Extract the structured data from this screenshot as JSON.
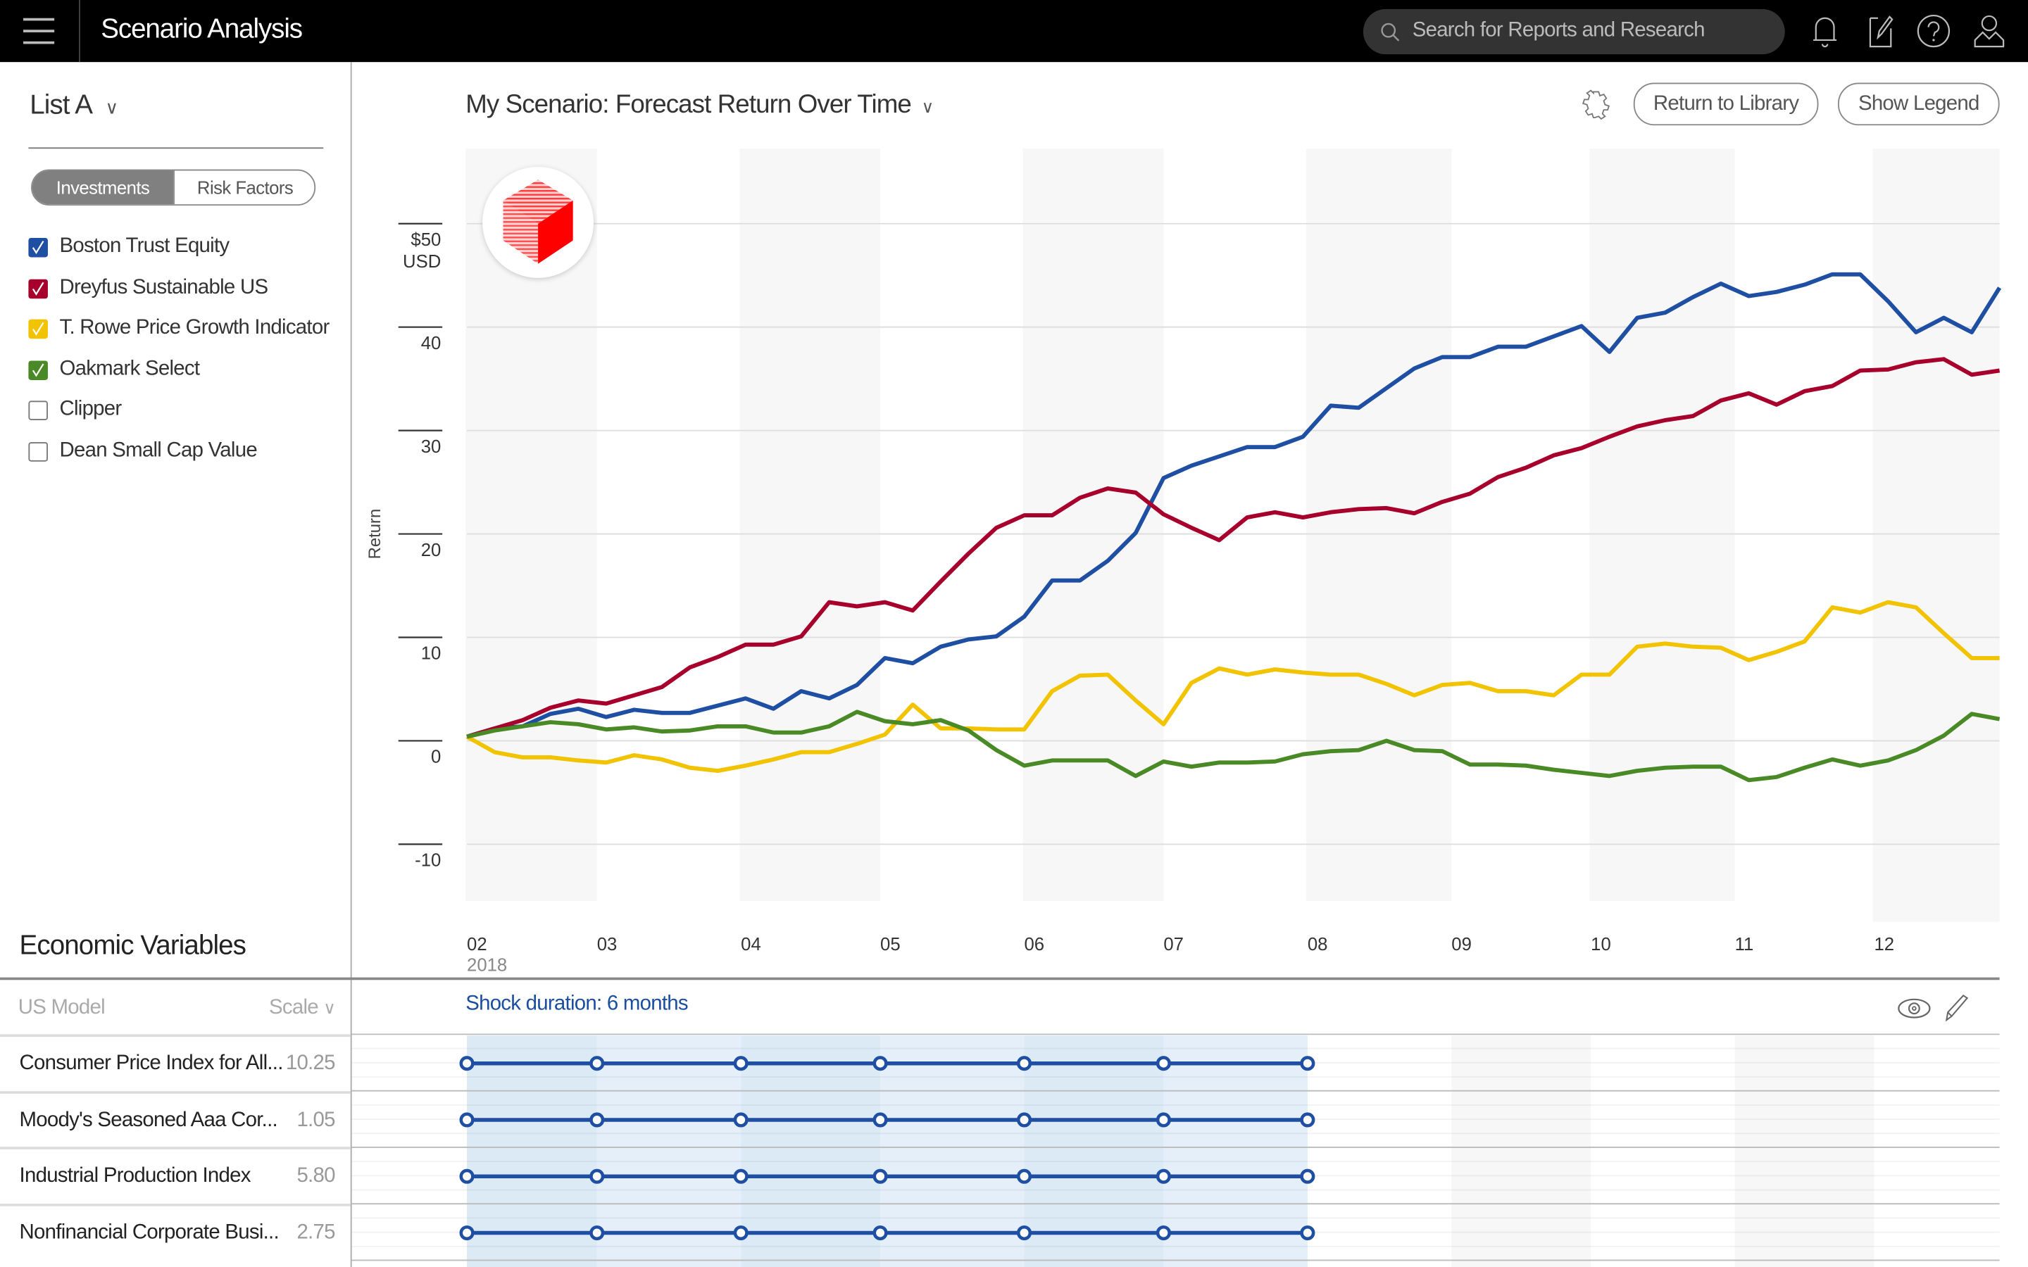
{
  "header": {
    "title": "Scenario Analysis",
    "search_placeholder": "Search for Reports and Research",
    "icons": [
      "menu-icon",
      "search-icon",
      "bell-icon",
      "edit-icon",
      "help-icon",
      "user-icon"
    ]
  },
  "sidebar": {
    "list_title": "List A",
    "segments": [
      {
        "label": "Investments",
        "active": true
      },
      {
        "label": "Risk Factors",
        "active": false
      }
    ],
    "items": [
      {
        "label": "Boston Trust Equity",
        "checked": true,
        "color": "#1f4fa3"
      },
      {
        "label": "Dreyfus Sustainable US",
        "checked": true,
        "color": "#a8002c"
      },
      {
        "label": "T. Rowe Price Growth Indicator",
        "checked": true,
        "color": "#f2c300"
      },
      {
        "label": "Oakmark Select",
        "checked": true,
        "color": "#4a8a26"
      },
      {
        "label": "Clipper",
        "checked": false,
        "color": "#777777"
      },
      {
        "label": "Dean Small Cap Value",
        "checked": false,
        "color": "#777777"
      }
    ]
  },
  "main": {
    "chart_title": "My Scenario: Forecast Return Over Time",
    "return_button": "Return to Library",
    "legend_button": "Show Legend"
  },
  "economic": {
    "title": "Economic Variables",
    "model": "US Model",
    "scale_label": "Scale",
    "shock_label": "Shock duration: 6 months",
    "shock_months": [
      "02",
      "03",
      "04",
      "05",
      "06",
      "07",
      "08"
    ],
    "rows": [
      {
        "name": "Consumer Price Index for All...",
        "value": "10.25"
      },
      {
        "name": "Moody's Seasoned Aaa Cor...",
        "value": "1.05"
      },
      {
        "name": "Industrial Production Index",
        "value": "5.80"
      },
      {
        "name": "Nonfinancial Corporate Busi...",
        "value": "2.75"
      }
    ],
    "shock_color": "#1f4fa3"
  },
  "chart_data": {
    "type": "line",
    "title": "My Scenario: Forecast Return Over Time",
    "ylabel": "Return",
    "y_unit": "USD",
    "ylim": [
      -10,
      50
    ],
    "y_ticks": [
      -10,
      0,
      10,
      20,
      30,
      40,
      50
    ],
    "y_tick_labels": [
      "-10",
      "0",
      "10",
      "20",
      "30",
      "40",
      "$50"
    ],
    "x_ticks": [
      "2018-02-01",
      "2018-03-01",
      "2018-04-01",
      "2018-05-01",
      "2018-06-01",
      "2018-07-01",
      "2018-08-01",
      "2018-09-01",
      "2018-10-01",
      "2018-11-01",
      "2018-12-01"
    ],
    "x_tick_labels": [
      "02",
      "03",
      "04",
      "05",
      "06",
      "07",
      "08",
      "09",
      "10",
      "11",
      "12"
    ],
    "x_year_label": "2018",
    "grid": true,
    "x": [
      "2018-02-01",
      "2018-02-07",
      "2018-02-13",
      "2018-02-19",
      "2018-02-25",
      "2018-03-03",
      "2018-03-09",
      "2018-03-15",
      "2018-03-21",
      "2018-03-27",
      "2018-04-02",
      "2018-04-08",
      "2018-04-14",
      "2018-04-20",
      "2018-04-26",
      "2018-05-02",
      "2018-05-08",
      "2018-05-14",
      "2018-05-20",
      "2018-05-26",
      "2018-06-01",
      "2018-06-07",
      "2018-06-13",
      "2018-06-19",
      "2018-06-25",
      "2018-07-01",
      "2018-07-07",
      "2018-07-13",
      "2018-07-19",
      "2018-07-25",
      "2018-07-31",
      "2018-08-06",
      "2018-08-12",
      "2018-08-18",
      "2018-08-24",
      "2018-08-30",
      "2018-09-05",
      "2018-09-11",
      "2018-09-17",
      "2018-09-23",
      "2018-09-29",
      "2018-10-05",
      "2018-10-11",
      "2018-10-17",
      "2018-10-23",
      "2018-10-29",
      "2018-11-04",
      "2018-11-10",
      "2018-11-16",
      "2018-11-22",
      "2018-11-28",
      "2018-12-04",
      "2018-12-10",
      "2018-12-16",
      "2018-12-22",
      "2018-12-28"
    ],
    "series": [
      {
        "name": "Boston Trust Equity",
        "color": "#1f4fa3",
        "values": [
          0.4,
          1.2,
          1.4,
          2.6,
          3.1,
          2.3,
          3.0,
          2.7,
          2.7,
          3.4,
          4.1,
          3.1,
          4.8,
          4.1,
          5.4,
          8.0,
          7.5,
          9.1,
          9.8,
          10.1,
          12.0,
          15.5,
          15.5,
          17.4,
          20.1,
          25.4,
          26.6,
          27.5,
          28.4,
          28.4,
          29.4,
          32.4,
          32.2,
          34.1,
          36.0,
          37.1,
          37.1,
          38.1,
          38.1,
          39.1,
          40.1,
          37.6,
          40.9,
          41.4,
          42.9,
          44.2,
          43.0,
          43.4,
          44.1,
          45.1,
          45.1,
          42.5,
          39.5,
          40.9,
          39.5,
          43.8
        ]
      },
      {
        "name": "Dreyfus Sustainable US",
        "color": "#a8002c",
        "values": [
          0.4,
          1.2,
          2.0,
          3.2,
          3.9,
          3.6,
          4.4,
          5.2,
          7.1,
          8.1,
          9.3,
          9.3,
          10.1,
          13.4,
          13.0,
          13.4,
          12.6,
          15.4,
          18.1,
          20.6,
          21.8,
          21.8,
          23.5,
          24.4,
          24.0,
          21.9,
          20.6,
          19.4,
          21.6,
          22.1,
          21.6,
          22.1,
          22.4,
          22.5,
          22.0,
          23.1,
          23.9,
          25.5,
          26.4,
          27.6,
          28.3,
          29.4,
          30.4,
          31.0,
          31.4,
          32.9,
          33.6,
          32.5,
          33.8,
          34.3,
          35.8,
          35.9,
          36.6,
          36.9,
          35.4,
          35.8
        ]
      },
      {
        "name": "T. Rowe Price Growth Indicator",
        "color": "#f2c300",
        "values": [
          0.4,
          -1.1,
          -1.6,
          -1.6,
          -1.9,
          -2.1,
          -1.4,
          -1.8,
          -2.6,
          -2.9,
          -2.4,
          -1.8,
          -1.1,
          -1.1,
          -0.3,
          0.6,
          3.5,
          1.2,
          1.2,
          1.1,
          1.1,
          4.8,
          6.3,
          6.4,
          3.9,
          1.6,
          5.6,
          7.0,
          6.4,
          6.9,
          6.6,
          6.4,
          6.4,
          5.5,
          4.4,
          5.4,
          5.6,
          4.8,
          4.8,
          4.4,
          6.4,
          6.4,
          9.1,
          9.4,
          9.1,
          9.0,
          7.8,
          8.6,
          9.6,
          12.9,
          12.4,
          13.4,
          12.9,
          10.4,
          8.0,
          8.0
        ]
      },
      {
        "name": "Oakmark Select",
        "color": "#4a8a26",
        "values": [
          0.4,
          1.0,
          1.4,
          1.8,
          1.6,
          1.1,
          1.3,
          0.9,
          1.0,
          1.4,
          1.4,
          0.8,
          0.8,
          1.4,
          2.8,
          1.9,
          1.6,
          2.0,
          1.0,
          -0.9,
          -2.4,
          -1.9,
          -1.9,
          -1.9,
          -3.4,
          -2.0,
          -2.5,
          -2.1,
          -2.1,
          -2.0,
          -1.3,
          -1.0,
          -0.9,
          0.0,
          -0.9,
          -1.0,
          -2.3,
          -2.3,
          -2.4,
          -2.8,
          -3.1,
          -3.4,
          -2.9,
          -2.6,
          -2.5,
          -2.5,
          -3.8,
          -3.5,
          -2.6,
          -1.8,
          -2.4,
          -1.9,
          -0.9,
          0.5,
          2.6,
          2.1
        ]
      }
    ]
  }
}
